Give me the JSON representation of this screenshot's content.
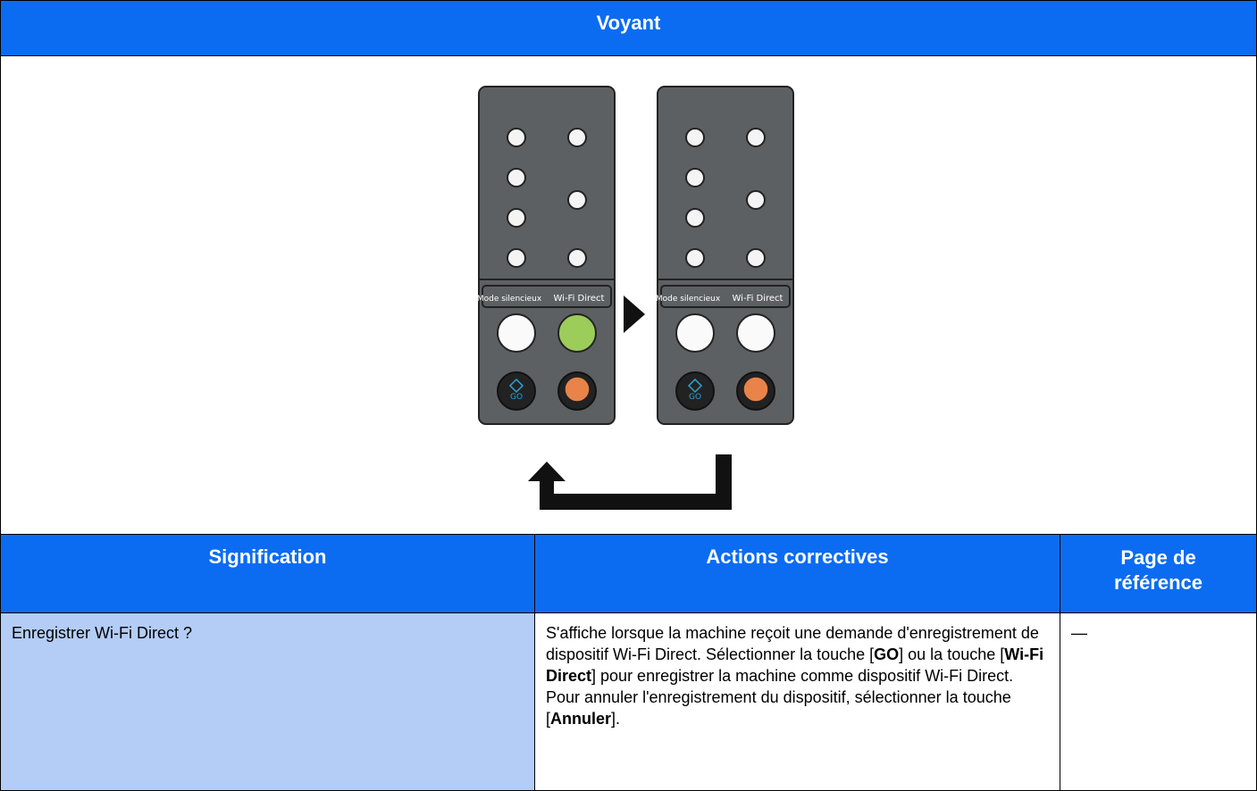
{
  "table": {
    "header": {
      "title": "Voyant"
    },
    "panel": {
      "labels": [
        "Mode silencieux",
        "Wi-Fi Direct"
      ],
      "go": "GO"
    },
    "columns": [
      "Signification",
      "Actions correctives",
      "Page de référence"
    ],
    "rows": [
      {
        "meaning": "Enregistrer Wi-Fi Direct ?",
        "action": [
          "S'affiche lorsque la machine reçoit une demande d'enregistrement de dispositif Wi-Fi Direct. Sélectionner la touche [",
          "GO",
          "] ou la touche [",
          "Wi-Fi Direct",
          "] pour enregistrer la machine comme dispositif Wi-Fi Direct. Pour annuler l'enregistrement du dispositif, sélectionner la touche [",
          "Annuler",
          "]."
        ],
        "page": "—"
      }
    ]
  }
}
